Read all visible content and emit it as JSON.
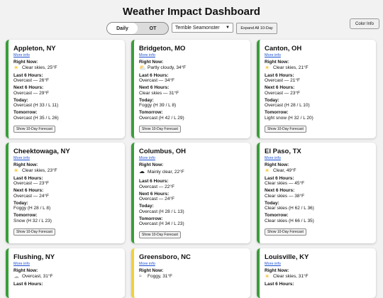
{
  "header": {
    "title": "Weather Impact Dashboard",
    "color_info_label": "Color Info",
    "toggle": {
      "daily": "Daily",
      "ot": "OT",
      "selected": "Daily"
    },
    "select_value": "Terrible Seamonster",
    "expand_all_label": "Expand All 10-Day"
  },
  "labels": {
    "right_now": "Right Now:",
    "last6": "Last 6 Hours:",
    "next6": "Next 6 Hours:",
    "today": "Today:",
    "tomorrow": "Tomorrow:",
    "more_info": "More info",
    "show10": "Show 10-Day Forecast"
  },
  "colors": {
    "green": "#3a9d3a",
    "yellow": "#f2d03b"
  },
  "cards": [
    {
      "city": "Appleton, NY",
      "icon": "sun-icon",
      "right_now": "Clear skies, 25°F",
      "last6": "Overcast — 26°F",
      "next6": "Overcast — 29°F",
      "today": "Overcast (H 33 / L 11)",
      "tomorrow": "Overcast (H 35 / L 26)",
      "status": "green"
    },
    {
      "city": "Bridgeton, MO",
      "icon": "partly-cloudy-icon",
      "right_now": "Partly cloudy, 34°F",
      "last6": "Overcast — 34°F",
      "next6": "Clear skies — 31°F",
      "today": "Foggy (H 39 / L 8)",
      "tomorrow": "Overcast (H 42 / L 29)",
      "status": "green"
    },
    {
      "city": "Canton, OH",
      "icon": "sun-icon",
      "right_now": "Clear skies, 21°F",
      "last6": "Overcast — 21°F",
      "next6": "Overcast — 23°F",
      "today": "Overcast (H 28 / L 10)",
      "tomorrow": "Light snow (H 32 / L 20)",
      "status": "green"
    },
    {
      "city": "Cheektowaga, NY",
      "icon": "sun-icon",
      "right_now": "Clear skies, 23°F",
      "last6": "Overcast — 23°F",
      "next6": "Overcast — 24°F",
      "today": "Foggy (H 28 / L 8)",
      "tomorrow": "Snow (H 32 / L 23)",
      "status": "green"
    },
    {
      "city": "Columbus, OH",
      "icon": "cloud-icon",
      "right_now": "Mainly clear, 22°F",
      "last6": "Overcast — 22°F",
      "next6": "Overcast — 24°F",
      "today": "Overcast (H 28 / L 13)",
      "tomorrow": "Overcast (H 34 / L 23)",
      "status": "green"
    },
    {
      "city": "El Paso, TX",
      "icon": "sun-icon",
      "right_now": "Clear, 49°F",
      "last6": "Clear skies — 45°F",
      "next6": "Clear skies — 38°F",
      "today": "Clear skies (H 62 / L 36)",
      "tomorrow": "Clear skies (H 66 / L 35)",
      "status": "green"
    },
    {
      "city": "Flushing, NY",
      "icon": "cloud-icon",
      "right_now": "Overcast, 31°F",
      "last6": "Last 6 Hours:",
      "status": "green"
    },
    {
      "city": "Greensboro, NC",
      "icon": "fog-icon",
      "right_now": "Foggy, 31°F",
      "status": "yellow"
    },
    {
      "city": "Louisville, KY",
      "icon": "sun-icon",
      "right_now": "Clear skies, 31°F",
      "status": "green"
    }
  ]
}
